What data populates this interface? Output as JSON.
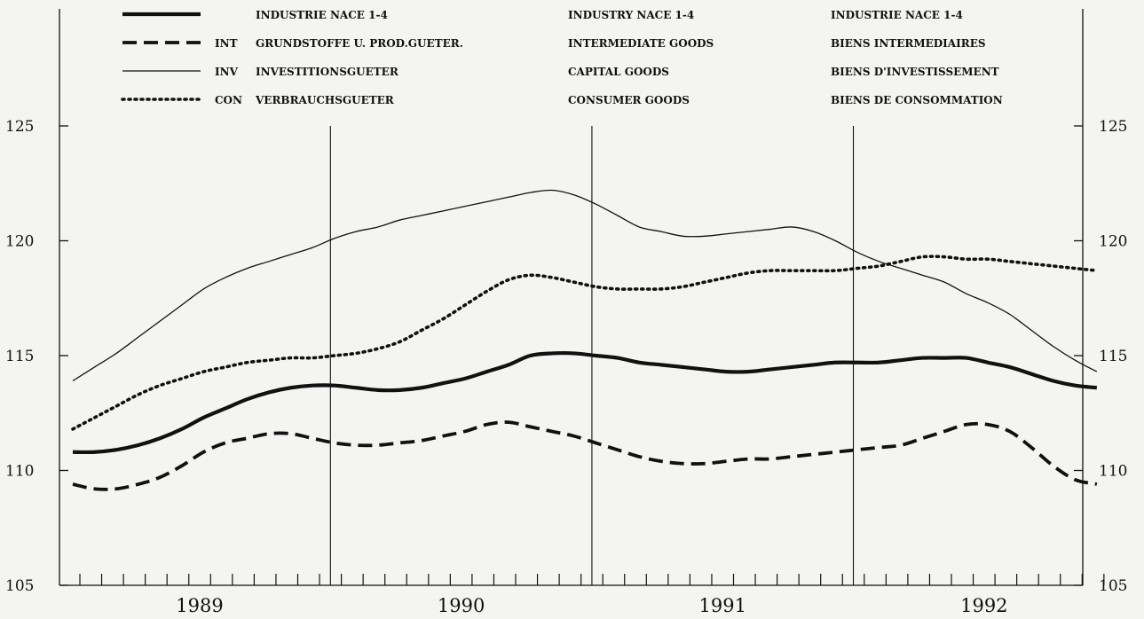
{
  "chart_data": {
    "type": "line",
    "title": "",
    "xlabel": "",
    "ylabel": "",
    "ylim": [
      105,
      125
    ],
    "yticks": [
      105,
      110,
      115,
      120,
      125
    ],
    "year_labels": [
      "1989",
      "1990",
      "1991",
      "1992"
    ],
    "grid": false,
    "legend_placement": "top",
    "x": [
      0,
      1,
      2,
      3,
      4,
      5,
      6,
      7,
      8,
      9,
      10,
      11,
      12,
      13,
      14,
      15,
      16,
      17,
      18,
      19,
      20,
      21,
      22,
      23,
      24,
      25,
      26,
      27,
      28,
      29,
      30,
      31,
      32,
      33,
      34,
      35,
      36,
      37,
      38,
      39,
      40,
      41,
      42,
      43,
      44,
      45,
      46,
      47
    ],
    "series": [
      {
        "name": "INDUSTRIE NACE 1-4",
        "name_en": "INDUSTRY NACE 1-4",
        "name_fr": "INDUSTRIE NACE 1-4",
        "code": "",
        "style": "thick",
        "values": [
          110.8,
          110.8,
          110.9,
          111.1,
          111.4,
          111.8,
          112.3,
          112.7,
          113.1,
          113.4,
          113.6,
          113.7,
          113.7,
          113.6,
          113.5,
          113.5,
          113.6,
          113.8,
          114.0,
          114.3,
          114.6,
          115.0,
          115.1,
          115.1,
          115.0,
          114.9,
          114.7,
          114.6,
          114.5,
          114.4,
          114.3,
          114.3,
          114.4,
          114.5,
          114.6,
          114.7,
          114.7,
          114.7,
          114.8,
          114.9,
          114.9,
          114.9,
          114.7,
          114.5,
          114.2,
          113.9,
          113.7,
          113.6
        ]
      },
      {
        "name": "GRUNDSTOFFE U. PROD.GUETER.",
        "name_en": "INTERMEDIATE GOODS",
        "name_fr": "BIENS INTERMEDIAIRES",
        "code": "INT",
        "style": "dashed",
        "values": [
          109.4,
          109.2,
          109.2,
          109.4,
          109.7,
          110.2,
          110.8,
          111.2,
          111.4,
          111.6,
          111.6,
          111.4,
          111.2,
          111.1,
          111.1,
          111.2,
          111.3,
          111.5,
          111.7,
          112.0,
          112.1,
          111.9,
          111.7,
          111.5,
          111.2,
          110.9,
          110.6,
          110.4,
          110.3,
          110.3,
          110.4,
          110.5,
          110.5,
          110.6,
          110.7,
          110.8,
          110.9,
          111.0,
          111.1,
          111.4,
          111.7,
          112.0,
          112.0,
          111.7,
          111.0,
          110.2,
          109.6,
          109.4
        ]
      },
      {
        "name": "INVESTITIONSGUETER",
        "name_en": "CAPITAL GOODS",
        "name_fr": "BIENS D'INVESTISSEMENT",
        "code": "INV",
        "style": "thin",
        "values": [
          113.9,
          114.5,
          115.1,
          115.8,
          116.5,
          117.2,
          117.9,
          118.4,
          118.8,
          119.1,
          119.4,
          119.7,
          120.1,
          120.4,
          120.6,
          120.9,
          121.1,
          121.3,
          121.5,
          121.7,
          121.9,
          122.1,
          122.2,
          122.0,
          121.6,
          121.1,
          120.6,
          120.4,
          120.2,
          120.2,
          120.3,
          120.4,
          120.5,
          120.6,
          120.4,
          120.0,
          119.5,
          119.1,
          118.8,
          118.5,
          118.2,
          117.7,
          117.3,
          116.8,
          116.1,
          115.4,
          114.8,
          114.3
        ]
      },
      {
        "name": "VERBRAUCHSGUETER",
        "name_en": "CONSUMER GOODS",
        "name_fr": "BIENS DE CONSOMMATION",
        "code": "CON",
        "style": "dotted",
        "values": [
          111.8,
          112.3,
          112.8,
          113.3,
          113.7,
          114.0,
          114.3,
          114.5,
          114.7,
          114.8,
          114.9,
          114.9,
          115.0,
          115.1,
          115.3,
          115.6,
          116.1,
          116.6,
          117.2,
          117.8,
          118.3,
          118.5,
          118.4,
          118.2,
          118.0,
          117.9,
          117.9,
          117.9,
          118.0,
          118.2,
          118.4,
          118.6,
          118.7,
          118.7,
          118.7,
          118.7,
          118.8,
          118.9,
          119.1,
          119.3,
          119.3,
          119.2,
          119.2,
          119.1,
          119.0,
          118.9,
          118.8,
          118.7
        ]
      }
    ]
  }
}
